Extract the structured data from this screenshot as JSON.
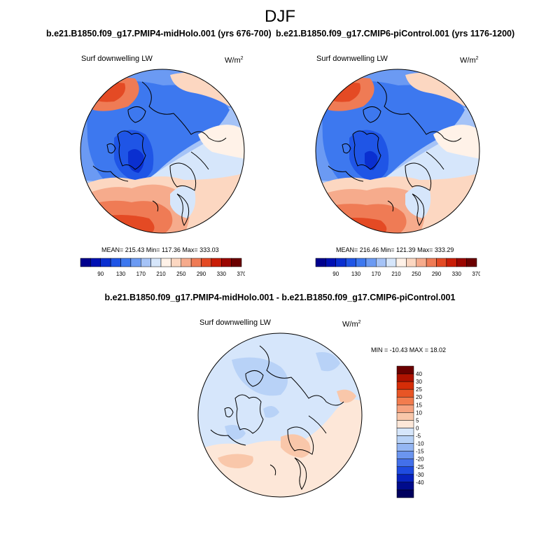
{
  "title": "DJF",
  "panels": [
    {
      "title": "b.e21.B1850.f09_g17.PMIP4-midHolo.001 (yrs 676-700)",
      "variable": "Surf downwelling LW",
      "units_base": "W/m",
      "units_exp": "2",
      "stats": "MEAN= 215.43  Min= 117.36  Max= 333.03",
      "mean": 215.43,
      "min": 117.36,
      "max": 333.03
    },
    {
      "title": "b.e21.B1850.f09_g17.CMIP6-piControl.001 (yrs 1176-1200)",
      "variable": "Surf downwelling LW",
      "units_base": "W/m",
      "units_exp": "2",
      "stats": "MEAN= 216.46  Min= 121.39  Max= 333.29",
      "mean": 216.46,
      "min": 121.39,
      "max": 333.29
    }
  ],
  "diff_panel": {
    "title": "b.e21.B1850.f09_g17.PMIP4-midHolo.001 - b.e21.B1850.f09_g17.CMIP6-piControl.001",
    "variable": "Surf downwelling LW",
    "units_base": "W/m",
    "units_exp": "2",
    "stats": "MIN = -10.43 MAX =  18.02",
    "min": -10.43,
    "max": 18.02
  },
  "colorbar_abs": {
    "colors": [
      "#00008e",
      "#0010b3",
      "#0a2fd0",
      "#1f55e6",
      "#3d78ef",
      "#6b9af3",
      "#a5c3f7",
      "#d6e6fb",
      "#fff2e8",
      "#fcd7c1",
      "#f6ab8c",
      "#ef7b55",
      "#e44a24",
      "#c91d07",
      "#9b0600",
      "#6b0000"
    ],
    "labels": [
      "90",
      "130",
      "170",
      "210",
      "250",
      "290",
      "330",
      "370"
    ]
  },
  "colorbar_diff": {
    "colors": [
      "#6b0000",
      "#b01200",
      "#d52d07",
      "#e85525",
      "#f27c4e",
      "#f6a27f",
      "#f9c7aa",
      "#fde7d8",
      "#d6e6fb",
      "#b8d2f7",
      "#94b6f3",
      "#6b95ef",
      "#4370ea",
      "#1f4be0",
      "#0822bd",
      "#000b8c",
      "#00005e"
    ],
    "labels": [
      "40",
      "30",
      "25",
      "20",
      "15",
      "10",
      "5",
      "0",
      "-5",
      "-10",
      "-15",
      "-20",
      "-25",
      "-30",
      "-40"
    ]
  }
}
